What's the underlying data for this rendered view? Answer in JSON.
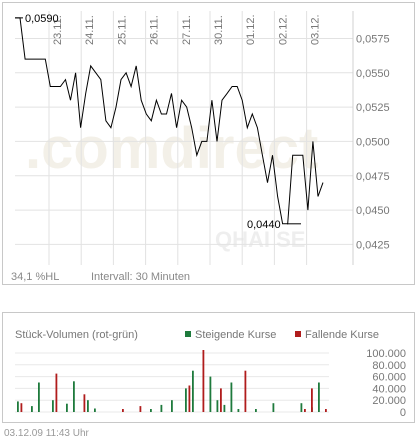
{
  "chart_data": [
    {
      "type": "line",
      "x_ticks": [
        "23.11.",
        "24.11.",
        "25.11.",
        "26.11.",
        "27.11.",
        "30.11.",
        "01.12.",
        "02.12.",
        "03.12."
      ],
      "y_ticks": [
        "0,0575",
        "0,0550",
        "0,0525",
        "0,0500",
        "0,0475",
        "0,0450",
        "0,0425"
      ],
      "ylim": [
        0.041,
        0.0595
      ],
      "grid": true,
      "annotations": {
        "high_label": "0,0590",
        "low_label": "0,0440"
      },
      "high_value": 0.059,
      "low_value": 0.044,
      "series": [
        {
          "color": "#000000",
          "values": [
            0.059,
            0.059,
            0.056,
            0.056,
            0.056,
            0.056,
            0.056,
            0.054,
            0.054,
            0.054,
            0.0545,
            0.053,
            0.055,
            0.051,
            0.0535,
            0.0555,
            0.055,
            0.0545,
            0.0515,
            0.051,
            0.0525,
            0.0545,
            0.055,
            0.054,
            0.0555,
            0.053,
            0.052,
            0.0515,
            0.053,
            0.052,
            0.052,
            0.0535,
            0.051,
            0.053,
            0.0525,
            0.051,
            0.049,
            0.05,
            0.05,
            0.053,
            0.05,
            0.053,
            0.0535,
            0.054,
            0.054,
            0.053,
            0.051,
            0.052,
            0.051,
            0.049,
            0.047,
            0.049,
            0.046,
            0.044,
            0.044,
            0.049,
            0.049,
            0.049,
            0.045,
            0.05,
            0.046,
            0.047
          ]
        }
      ],
      "footer": {
        "change": "34,1 %HL",
        "interval": "Intervall: 30 Minuten"
      },
      "watermark": {
        "logo": ".comdirect",
        "source": "QHAI SE"
      }
    },
    {
      "type": "bar",
      "title": "Stück-Volumen (rot-grün)",
      "legend": [
        {
          "label": "Steigende Kurse",
          "color": "#1e7a3c"
        },
        {
          "label": "Fallende Kurse",
          "color": "#b01c1c"
        }
      ],
      "legend_placement": "top-right",
      "y_ticks": [
        "100.000",
        "80.000",
        "60.000",
        "40.000",
        "20.000",
        "0"
      ],
      "ylim": [
        0,
        100000
      ],
      "series": [
        {
          "name": "Steigende Kurse",
          "color": "#1e7a3c",
          "values": [
            18000,
            0,
            0,
            0,
            10000,
            0,
            50000,
            0,
            0,
            0,
            20000,
            0,
            0,
            0,
            14000,
            0,
            52000,
            0,
            0,
            0,
            20000,
            0,
            6000,
            0,
            0,
            0,
            0,
            0,
            0,
            0,
            0,
            0,
            0,
            0,
            0,
            0,
            0,
            0,
            5000,
            0,
            0,
            12000,
            0,
            0,
            20000,
            0,
            0,
            0,
            40000,
            0,
            70000,
            0,
            0,
            0,
            0,
            60000,
            0,
            20000,
            0,
            12000,
            0,
            50000,
            0,
            5000,
            0,
            0,
            0,
            0,
            5000,
            0,
            0,
            0,
            0,
            15000,
            0,
            0,
            0,
            0,
            0,
            0,
            0,
            15000,
            0,
            0,
            8000,
            0,
            50000,
            0,
            0
          ]
        },
        {
          "name": "Fallende Kurse",
          "color": "#b01c1c",
          "values": [
            0,
            15000,
            0,
            0,
            0,
            0,
            0,
            0,
            0,
            0,
            0,
            65000,
            0,
            0,
            0,
            0,
            0,
            0,
            0,
            30000,
            0,
            0,
            0,
            0,
            0,
            0,
            0,
            0,
            0,
            0,
            5000,
            0,
            0,
            0,
            0,
            10000,
            0,
            0,
            0,
            0,
            0,
            0,
            0,
            0,
            0,
            0,
            0,
            0,
            0,
            45000,
            0,
            0,
            0,
            105000,
            0,
            0,
            0,
            0,
            40000,
            0,
            0,
            0,
            0,
            0,
            0,
            70000,
            0,
            0,
            0,
            0,
            0,
            0,
            0,
            0,
            0,
            0,
            0,
            0,
            0,
            0,
            0,
            0,
            5000,
            0,
            40000,
            0,
            0,
            0,
            5000
          ]
        }
      ]
    }
  ],
  "timestamp": "03.12.09    11:43 Uhr"
}
